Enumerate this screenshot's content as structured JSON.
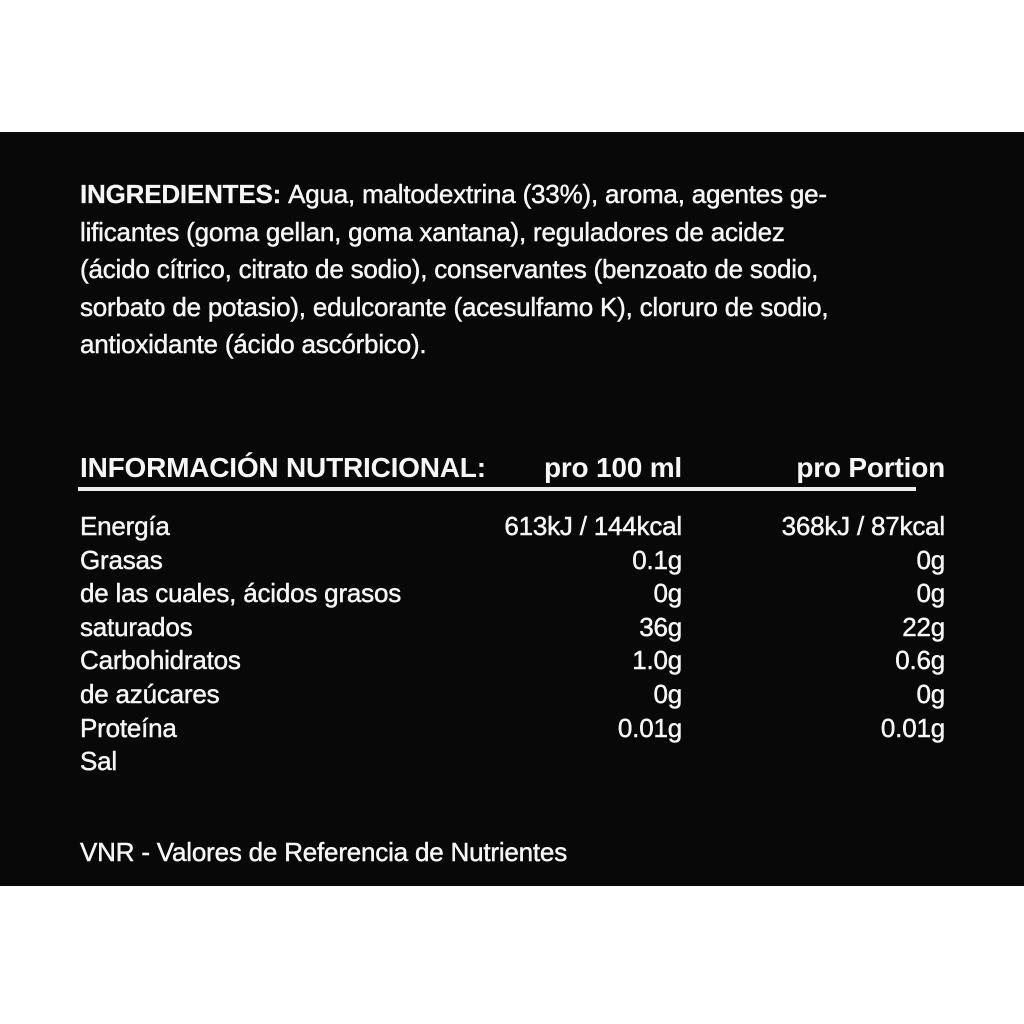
{
  "label": {
    "ingredients": {
      "heading": "INGREDIENTES:",
      "lines": [
        "Agua, maltodextrina (33%), aroma, agentes ge-",
        "lificantes (goma gellan, goma xantana), reguladores de acidez",
        "(ácido cítrico, citrato de sodio), conservantes (benzoato de sodio,",
        "sorbato de potasio), edulcorante (acesulfamo K), cloruro de sodio,",
        "antioxidante (ácido ascórbico)."
      ]
    },
    "nutrition": {
      "title": "INFORMACIÓN NUTRICIONAL:",
      "col_per_100ml": "pro 100 ml",
      "col_per_portion": "pro Portion",
      "rows": [
        {
          "name": "Energía",
          "per_100ml": "613kJ / 144kcal",
          "per_portion": "368kJ / 87kcal"
        },
        {
          "name": "Grasas",
          "per_100ml": "0.1g",
          "per_portion": "0g"
        },
        {
          "name": "de las cuales, ácidos grasos",
          "per_100ml": "0g",
          "per_portion": "0g"
        },
        {
          "name": "saturados",
          "per_100ml": "36g",
          "per_portion": "22g"
        },
        {
          "name": "Carbohidratos",
          "per_100ml": "1.0g",
          "per_portion": "0.6g"
        },
        {
          "name": "de azúcares",
          "per_100ml": "0g",
          "per_portion": "0g"
        },
        {
          "name": "Proteína",
          "per_100ml": "0.01g",
          "per_portion": "0.01g"
        },
        {
          "name": "Sal",
          "per_100ml": "",
          "per_portion": ""
        }
      ]
    },
    "footnote": "VNR - Valores de Referencia de Nutrientes",
    "colors": {
      "page_bg": "#ffffff",
      "panel_bg": "#080808",
      "text": "#f7f7f7",
      "rule": "#ededed"
    }
  }
}
